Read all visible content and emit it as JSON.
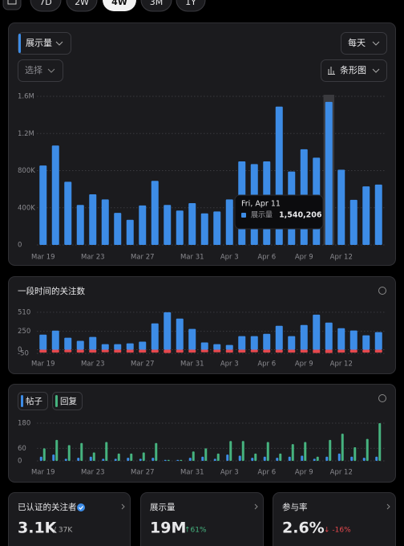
{
  "tabs": [
    "7D",
    "2W",
    "4W",
    "3M",
    "1Y"
  ],
  "controls": {
    "interval": "每天",
    "select": "选择",
    "chart_type": "条形图"
  },
  "chart_data": [
    {
      "type": "bar",
      "ylim": [
        0,
        1600000
      ],
      "yticks": [
        0,
        {
          "value": 400000,
          "label": "400K"
        },
        {
          "value": 800000,
          "label": "800K"
        },
        {
          "value": 1200000,
          "label": "1.2M"
        },
        {
          "value": 1600000,
          "label": "1.6M"
        }
      ],
      "categories": [
        "Mar 19",
        null,
        null,
        null,
        "Mar 23",
        null,
        null,
        null,
        "Mar 27",
        null,
        null,
        null,
        "Mar 31",
        null,
        null,
        "Apr 3",
        null,
        null,
        "Apr 6",
        null,
        null,
        "Apr 9",
        null,
        null,
        "Apr 12",
        null,
        null,
        null
      ],
      "barmode": "overlay",
      "grid": true,
      "selected": 23,
      "series": [
        {
          "name": "展示量",
          "color": "#3d8ce6",
          "values": [
            855000,
            1070000,
            680000,
            430000,
            545000,
            490000,
            345000,
            270000,
            425000,
            690000,
            430000,
            370000,
            450000,
            340000,
            360000,
            490000,
            900000,
            870000,
            900000,
            1490000,
            790000,
            1030000,
            940000,
            1540206,
            810000,
            485000,
            630000,
            650000
          ]
        }
      ],
      "tooltip": {
        "title": "Fri, Apr 11",
        "value_label": "1,540,206"
      }
    },
    {
      "type": "bar",
      "title": "一段时间的关注数",
      "ylim": [
        -60,
        520
      ],
      "yticks": [
        -50,
        0,
        250,
        510
      ],
      "categories": [
        "Mar 19",
        null,
        null,
        null,
        "Mar 23",
        null,
        null,
        null,
        "Mar 27",
        null,
        null,
        null,
        "Mar 31",
        null,
        null,
        "Apr 3",
        null,
        null,
        "Apr 6",
        null,
        null,
        "Apr 9",
        null,
        null,
        "Apr 12",
        null,
        null,
        null
      ],
      "barmode": "overlay",
      "grid": true,
      "series": [
        {
          "color": "#3d8ce6",
          "values": [
            206,
            260,
            163,
            120,
            174,
            76,
            76,
            87,
            109,
            359,
            510,
            424,
            283,
            98,
            76,
            65,
            185,
            185,
            217,
            326,
            185,
            337,
            478,
            370,
            293,
            261,
            196,
            239
          ]
        },
        {
          "color": "#e5484d",
          "values": [
            -40,
            -40,
            -35,
            -40,
            -40,
            -35,
            -40,
            -40,
            -40,
            -40,
            -45,
            -40,
            -40,
            -35,
            -35,
            -40,
            -40,
            -35,
            -40,
            -40,
            -40,
            -40,
            -45,
            -45,
            -40,
            -40,
            -40,
            -40
          ]
        }
      ]
    },
    {
      "type": "bar",
      "ylim": [
        0,
        190
      ],
      "yticks": [
        0,
        60,
        180
      ],
      "categories": [
        "Mar 19",
        null,
        null,
        null,
        "Mar 23",
        null,
        null,
        null,
        "Mar 27",
        null,
        null,
        null,
        "Mar 31",
        null,
        null,
        "Apr 3",
        null,
        null,
        "Apr 6",
        null,
        null,
        "Apr 9",
        null,
        null,
        "Apr 12",
        null,
        null,
        null
      ],
      "barmode": "group",
      "grid": true,
      "series": [
        {
          "name": "帖子",
          "color": "#3d8ce6",
          "values": [
            20,
            30,
            10,
            15,
            20,
            10,
            10,
            15,
            10,
            15,
            5,
            5,
            15,
            20,
            10,
            30,
            25,
            15,
            20,
            15,
            20,
            25,
            10,
            20,
            35,
            20,
            15,
            20
          ]
        },
        {
          "name": "回复",
          "color": "#46b37f",
          "values": [
            60,
            100,
            75,
            85,
            40,
            90,
            35,
            35,
            40,
            85,
            5,
            5,
            45,
            60,
            35,
            95,
            95,
            35,
            90,
            35,
            80,
            90,
            20,
            100,
            130,
            65,
            105,
            180
          ]
        }
      ]
    }
  ],
  "cards": [
    {
      "title": "已认证的关注者",
      "value": "3.1K",
      "sub": "/ 37K"
    },
    {
      "title": "展示量",
      "value": "19M",
      "change": "↑61%"
    },
    {
      "title": "参与率",
      "value": "2.6%",
      "change": "↓ -16%"
    }
  ]
}
